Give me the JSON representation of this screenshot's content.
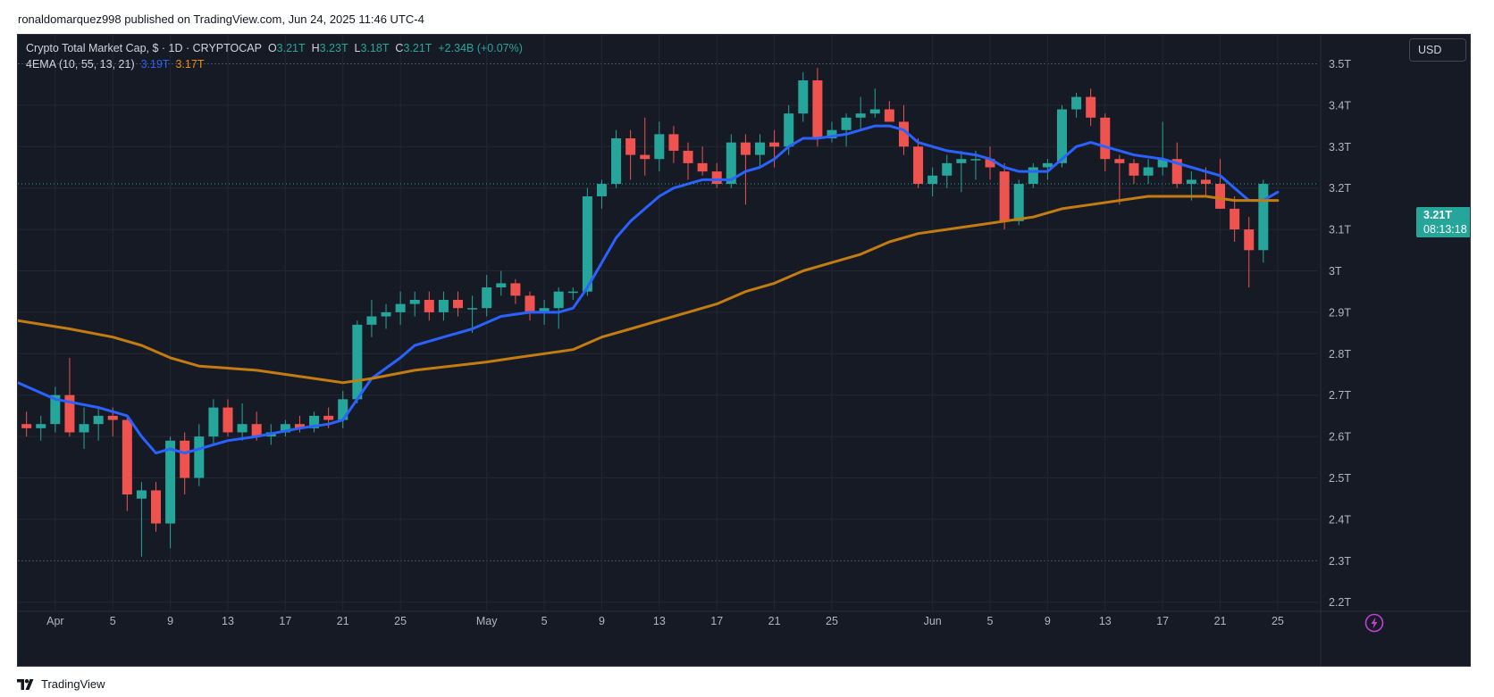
{
  "header": {
    "published": "ronaldomarquez998 published on TradingView.com, Jun 24, 2025 11:46 UTC-4"
  },
  "legend": {
    "symbol": "Crypto Total Market Cap, $ · 1D · CRYPTOCAP",
    "o_label": "O",
    "o_value": "3.21T",
    "h_label": "H",
    "h_value": "3.23T",
    "l_label": "L",
    "l_value": "3.18T",
    "c_label": "C",
    "c_value": "3.21T",
    "change": "+2.34B (+0.07%)",
    "indicator_name": "4EMA (10, 55, 13, 21)",
    "ema_fast_value": "3.19T",
    "ema_slow_value": "3.17T"
  },
  "toolbar": {
    "currency": "USD"
  },
  "price_tag": {
    "price": "3.21T",
    "countdown": "08:13:18"
  },
  "footer": {
    "brand": "TradingView"
  },
  "colors": {
    "background": "#161a25",
    "up": "#26a69a",
    "down": "#ef5350",
    "ema_fast": "#2962ff",
    "ema_slow": "#c27c12",
    "grid": "#232733",
    "text": "#b2b5be"
  },
  "icons": {
    "bolt": "lightning-icon",
    "logo": "tradingview-logo-icon"
  },
  "chart_data": {
    "type": "candlestick",
    "title": "Crypto Total Market Cap, $ · 1D · CRYPTOCAP",
    "currency": "USD",
    "ylim": [
      2.18,
      3.57
    ],
    "y_ticks": [
      2.2,
      2.3,
      2.4,
      2.5,
      2.6,
      2.7,
      2.8,
      2.9,
      3.0,
      3.1,
      3.2,
      3.3,
      3.4,
      3.5
    ],
    "y_tick_labels": [
      "2.2T",
      "2.3T",
      "2.4T",
      "2.5T",
      "2.6T",
      "2.7T",
      "2.8T",
      "2.9T",
      "3T",
      "3.1T",
      "3.2T",
      "3.3T",
      "3.4T",
      "3.5T"
    ],
    "x_ticks": [
      {
        "day": 0,
        "label": "Apr"
      },
      {
        "day": 4,
        "label": "5"
      },
      {
        "day": 8,
        "label": "9"
      },
      {
        "day": 12,
        "label": "13"
      },
      {
        "day": 16,
        "label": "17"
      },
      {
        "day": 20,
        "label": "21"
      },
      {
        "day": 24,
        "label": "25"
      },
      {
        "day": 30,
        "label": "May"
      },
      {
        "day": 34,
        "label": "5"
      },
      {
        "day": 38,
        "label": "9"
      },
      {
        "day": 42,
        "label": "13"
      },
      {
        "day": 46,
        "label": "17"
      },
      {
        "day": 50,
        "label": "21"
      },
      {
        "day": 54,
        "label": "25"
      },
      {
        "day": 61,
        "label": "Jun"
      },
      {
        "day": 65,
        "label": "5"
      },
      {
        "day": 69,
        "label": "9"
      },
      {
        "day": 73,
        "label": "13"
      },
      {
        "day": 77,
        "label": "17"
      },
      {
        "day": 81,
        "label": "21"
      },
      {
        "day": 85,
        "label": "25"
      }
    ],
    "first_day": -2.6,
    "last_day": 87.8,
    "candles": [
      {
        "day": -2,
        "o": 2.63,
        "h": 2.66,
        "l": 2.6,
        "c": 2.62
      },
      {
        "day": -1,
        "o": 2.62,
        "h": 2.65,
        "l": 2.59,
        "c": 2.63
      },
      {
        "day": 0,
        "o": 2.63,
        "h": 2.72,
        "l": 2.61,
        "c": 2.7
      },
      {
        "day": 1,
        "o": 2.7,
        "h": 2.79,
        "l": 2.6,
        "c": 2.61
      },
      {
        "day": 2,
        "o": 2.61,
        "h": 2.67,
        "l": 2.57,
        "c": 2.63
      },
      {
        "day": 3,
        "o": 2.63,
        "h": 2.67,
        "l": 2.59,
        "c": 2.65
      },
      {
        "day": 4,
        "o": 2.65,
        "h": 2.67,
        "l": 2.6,
        "c": 2.64
      },
      {
        "day": 5,
        "o": 2.64,
        "h": 2.65,
        "l": 2.42,
        "c": 2.46
      },
      {
        "day": 6,
        "o": 2.45,
        "h": 2.49,
        "l": 2.31,
        "c": 2.47
      },
      {
        "day": 7,
        "o": 2.47,
        "h": 2.49,
        "l": 2.37,
        "c": 2.39
      },
      {
        "day": 8,
        "o": 2.39,
        "h": 2.6,
        "l": 2.33,
        "c": 2.59
      },
      {
        "day": 9,
        "o": 2.59,
        "h": 2.61,
        "l": 2.46,
        "c": 2.5
      },
      {
        "day": 10,
        "o": 2.5,
        "h": 2.63,
        "l": 2.48,
        "c": 2.6
      },
      {
        "day": 11,
        "o": 2.6,
        "h": 2.69,
        "l": 2.58,
        "c": 2.67
      },
      {
        "day": 12,
        "o": 2.67,
        "h": 2.69,
        "l": 2.6,
        "c": 2.61
      },
      {
        "day": 13,
        "o": 2.61,
        "h": 2.68,
        "l": 2.59,
        "c": 2.63
      },
      {
        "day": 14,
        "o": 2.63,
        "h": 2.66,
        "l": 2.59,
        "c": 2.6
      },
      {
        "day": 15,
        "o": 2.6,
        "h": 2.63,
        "l": 2.58,
        "c": 2.61
      },
      {
        "day": 16,
        "o": 2.61,
        "h": 2.64,
        "l": 2.6,
        "c": 2.63
      },
      {
        "day": 17,
        "o": 2.63,
        "h": 2.65,
        "l": 2.61,
        "c": 2.62
      },
      {
        "day": 18,
        "o": 2.62,
        "h": 2.66,
        "l": 2.61,
        "c": 2.65
      },
      {
        "day": 19,
        "o": 2.65,
        "h": 2.67,
        "l": 2.62,
        "c": 2.64
      },
      {
        "day": 20,
        "o": 2.64,
        "h": 2.71,
        "l": 2.62,
        "c": 2.69
      },
      {
        "day": 21,
        "o": 2.69,
        "h": 2.88,
        "l": 2.68,
        "c": 2.87
      },
      {
        "day": 22,
        "o": 2.87,
        "h": 2.93,
        "l": 2.84,
        "c": 2.89
      },
      {
        "day": 23,
        "o": 2.89,
        "h": 2.92,
        "l": 2.86,
        "c": 2.9
      },
      {
        "day": 24,
        "o": 2.9,
        "h": 2.95,
        "l": 2.87,
        "c": 2.92
      },
      {
        "day": 25,
        "o": 2.92,
        "h": 2.95,
        "l": 2.89,
        "c": 2.93
      },
      {
        "day": 26,
        "o": 2.93,
        "h": 2.95,
        "l": 2.88,
        "c": 2.9
      },
      {
        "day": 27,
        "o": 2.9,
        "h": 2.95,
        "l": 2.88,
        "c": 2.93
      },
      {
        "day": 28,
        "o": 2.93,
        "h": 2.95,
        "l": 2.89,
        "c": 2.91
      },
      {
        "day": 29,
        "o": 2.91,
        "h": 2.94,
        "l": 2.85,
        "c": 2.91
      },
      {
        "day": 30,
        "o": 2.91,
        "h": 2.99,
        "l": 2.89,
        "c": 2.96
      },
      {
        "day": 31,
        "o": 2.96,
        "h": 3.0,
        "l": 2.94,
        "c": 2.97
      },
      {
        "day": 32,
        "o": 2.97,
        "h": 2.98,
        "l": 2.92,
        "c": 2.94
      },
      {
        "day": 33,
        "o": 2.94,
        "h": 2.95,
        "l": 2.88,
        "c": 2.9
      },
      {
        "day": 34,
        "o": 2.9,
        "h": 2.93,
        "l": 2.87,
        "c": 2.91
      },
      {
        "day": 35,
        "o": 2.91,
        "h": 2.96,
        "l": 2.86,
        "c": 2.95
      },
      {
        "day": 36,
        "o": 2.95,
        "h": 2.96,
        "l": 2.93,
        "c": 2.95
      },
      {
        "day": 37,
        "o": 2.95,
        "h": 3.2,
        "l": 2.94,
        "c": 3.18
      },
      {
        "day": 38,
        "o": 3.18,
        "h": 3.22,
        "l": 3.15,
        "c": 3.21
      },
      {
        "day": 39,
        "o": 3.21,
        "h": 3.34,
        "l": 3.2,
        "c": 3.32
      },
      {
        "day": 40,
        "o": 3.32,
        "h": 3.34,
        "l": 3.22,
        "c": 3.28
      },
      {
        "day": 41,
        "o": 3.28,
        "h": 3.37,
        "l": 3.23,
        "c": 3.27
      },
      {
        "day": 42,
        "o": 3.27,
        "h": 3.36,
        "l": 3.24,
        "c": 3.33
      },
      {
        "day": 43,
        "o": 3.33,
        "h": 3.35,
        "l": 3.26,
        "c": 3.29
      },
      {
        "day": 44,
        "o": 3.29,
        "h": 3.31,
        "l": 3.22,
        "c": 3.26
      },
      {
        "day": 45,
        "o": 3.26,
        "h": 3.3,
        "l": 3.23,
        "c": 3.24
      },
      {
        "day": 46,
        "o": 3.24,
        "h": 3.26,
        "l": 3.2,
        "c": 3.21
      },
      {
        "day": 47,
        "o": 3.21,
        "h": 3.33,
        "l": 3.2,
        "c": 3.31
      },
      {
        "day": 48,
        "o": 3.31,
        "h": 3.33,
        "l": 3.16,
        "c": 3.28
      },
      {
        "day": 49,
        "o": 3.28,
        "h": 3.33,
        "l": 3.25,
        "c": 3.31
      },
      {
        "day": 50,
        "o": 3.31,
        "h": 3.34,
        "l": 3.25,
        "c": 3.3
      },
      {
        "day": 51,
        "o": 3.3,
        "h": 3.4,
        "l": 3.28,
        "c": 3.38
      },
      {
        "day": 52,
        "o": 3.38,
        "h": 3.48,
        "l": 3.36,
        "c": 3.46
      },
      {
        "day": 53,
        "o": 3.46,
        "h": 3.49,
        "l": 3.3,
        "c": 3.32
      },
      {
        "day": 54,
        "o": 3.32,
        "h": 3.36,
        "l": 3.31,
        "c": 3.34
      },
      {
        "day": 55,
        "o": 3.34,
        "h": 3.38,
        "l": 3.3,
        "c": 3.37
      },
      {
        "day": 56,
        "o": 3.37,
        "h": 3.42,
        "l": 3.34,
        "c": 3.38
      },
      {
        "day": 57,
        "o": 3.38,
        "h": 3.44,
        "l": 3.37,
        "c": 3.39
      },
      {
        "day": 58,
        "o": 3.39,
        "h": 3.41,
        "l": 3.36,
        "c": 3.36
      },
      {
        "day": 59,
        "o": 3.36,
        "h": 3.4,
        "l": 3.28,
        "c": 3.3
      },
      {
        "day": 60,
        "o": 3.3,
        "h": 3.32,
        "l": 3.2,
        "c": 3.21
      },
      {
        "day": 61,
        "o": 3.21,
        "h": 3.25,
        "l": 3.18,
        "c": 3.23
      },
      {
        "day": 62,
        "o": 3.23,
        "h": 3.28,
        "l": 3.2,
        "c": 3.26
      },
      {
        "day": 63,
        "o": 3.26,
        "h": 3.29,
        "l": 3.19,
        "c": 3.27
      },
      {
        "day": 64,
        "o": 3.27,
        "h": 3.29,
        "l": 3.22,
        "c": 3.27
      },
      {
        "day": 65,
        "o": 3.27,
        "h": 3.3,
        "l": 3.22,
        "c": 3.25
      },
      {
        "day": 66,
        "o": 3.24,
        "h": 3.26,
        "l": 3.1,
        "c": 3.12
      },
      {
        "day": 67,
        "o": 3.12,
        "h": 3.22,
        "l": 3.11,
        "c": 3.21
      },
      {
        "day": 68,
        "o": 3.21,
        "h": 3.26,
        "l": 3.2,
        "c": 3.25
      },
      {
        "day": 69,
        "o": 3.25,
        "h": 3.27,
        "l": 3.22,
        "c": 3.26
      },
      {
        "day": 70,
        "o": 3.26,
        "h": 3.4,
        "l": 3.25,
        "c": 3.39
      },
      {
        "day": 71,
        "o": 3.39,
        "h": 3.43,
        "l": 3.37,
        "c": 3.42
      },
      {
        "day": 72,
        "o": 3.42,
        "h": 3.44,
        "l": 3.35,
        "c": 3.37
      },
      {
        "day": 73,
        "o": 3.37,
        "h": 3.38,
        "l": 3.24,
        "c": 3.27
      },
      {
        "day": 74,
        "o": 3.27,
        "h": 3.28,
        "l": 3.16,
        "c": 3.26
      },
      {
        "day": 75,
        "o": 3.26,
        "h": 3.27,
        "l": 3.21,
        "c": 3.23
      },
      {
        "day": 76,
        "o": 3.23,
        "h": 3.27,
        "l": 3.21,
        "c": 3.25
      },
      {
        "day": 77,
        "o": 3.25,
        "h": 3.36,
        "l": 3.23,
        "c": 3.27
      },
      {
        "day": 78,
        "o": 3.27,
        "h": 3.31,
        "l": 3.2,
        "c": 3.21
      },
      {
        "day": 79,
        "o": 3.21,
        "h": 3.24,
        "l": 3.17,
        "c": 3.22
      },
      {
        "day": 80,
        "o": 3.22,
        "h": 3.25,
        "l": 3.18,
        "c": 3.21
      },
      {
        "day": 81,
        "o": 3.21,
        "h": 3.27,
        "l": 3.15,
        "c": 3.15
      },
      {
        "day": 82,
        "o": 3.15,
        "h": 3.18,
        "l": 3.07,
        "c": 3.1
      },
      {
        "day": 83,
        "o": 3.1,
        "h": 3.13,
        "l": 2.96,
        "c": 3.05
      },
      {
        "day": 84,
        "o": 3.05,
        "h": 3.22,
        "l": 3.02,
        "c": 3.21
      }
    ],
    "series": [
      {
        "name": "EMA 10",
        "color": "#2962ff",
        "points": [
          [
            -2.6,
            2.73
          ],
          [
            0,
            2.69
          ],
          [
            3,
            2.67
          ],
          [
            5,
            2.65
          ],
          [
            6,
            2.6
          ],
          [
            7,
            2.56
          ],
          [
            8,
            2.57
          ],
          [
            9,
            2.56
          ],
          [
            10,
            2.57
          ],
          [
            12,
            2.59
          ],
          [
            14,
            2.6
          ],
          [
            17,
            2.62
          ],
          [
            19,
            2.63
          ],
          [
            20,
            2.64
          ],
          [
            21,
            2.69
          ],
          [
            22,
            2.74
          ],
          [
            24,
            2.79
          ],
          [
            25,
            2.82
          ],
          [
            27,
            2.84
          ],
          [
            29,
            2.86
          ],
          [
            31,
            2.89
          ],
          [
            33,
            2.9
          ],
          [
            35,
            2.9
          ],
          [
            36,
            2.91
          ],
          [
            37,
            2.96
          ],
          [
            38,
            3.02
          ],
          [
            39,
            3.08
          ],
          [
            40,
            3.12
          ],
          [
            41,
            3.15
          ],
          [
            42,
            3.18
          ],
          [
            43,
            3.2
          ],
          [
            44,
            3.21
          ],
          [
            45,
            3.22
          ],
          [
            47,
            3.22
          ],
          [
            48,
            3.24
          ],
          [
            49,
            3.25
          ],
          [
            50,
            3.27
          ],
          [
            51,
            3.3
          ],
          [
            52,
            3.32
          ],
          [
            53,
            3.32
          ],
          [
            55,
            3.33
          ],
          [
            57,
            3.35
          ],
          [
            58,
            3.35
          ],
          [
            59,
            3.34
          ],
          [
            60,
            3.31
          ],
          [
            61,
            3.3
          ],
          [
            62,
            3.29
          ],
          [
            64,
            3.28
          ],
          [
            65,
            3.27
          ],
          [
            66,
            3.25
          ],
          [
            67,
            3.24
          ],
          [
            69,
            3.24
          ],
          [
            70,
            3.27
          ],
          [
            71,
            3.3
          ],
          [
            72,
            3.31
          ],
          [
            73,
            3.3
          ],
          [
            75,
            3.28
          ],
          [
            77,
            3.27
          ],
          [
            79,
            3.25
          ],
          [
            81,
            3.23
          ],
          [
            82,
            3.2
          ],
          [
            83,
            3.17
          ],
          [
            84,
            3.17
          ],
          [
            85,
            3.19
          ]
        ]
      },
      {
        "name": "EMA 55",
        "color": "#c27c12",
        "points": [
          [
            -2.6,
            2.88
          ],
          [
            1,
            2.86
          ],
          [
            4,
            2.84
          ],
          [
            6,
            2.82
          ],
          [
            8,
            2.79
          ],
          [
            10,
            2.77
          ],
          [
            14,
            2.76
          ],
          [
            18,
            2.74
          ],
          [
            20,
            2.73
          ],
          [
            22,
            2.74
          ],
          [
            25,
            2.76
          ],
          [
            30,
            2.78
          ],
          [
            32,
            2.79
          ],
          [
            34,
            2.8
          ],
          [
            36,
            2.81
          ],
          [
            38,
            2.84
          ],
          [
            40,
            2.86
          ],
          [
            42,
            2.88
          ],
          [
            44,
            2.9
          ],
          [
            46,
            2.92
          ],
          [
            48,
            2.95
          ],
          [
            50,
            2.97
          ],
          [
            52,
            3.0
          ],
          [
            54,
            3.02
          ],
          [
            56,
            3.04
          ],
          [
            58,
            3.07
          ],
          [
            60,
            3.09
          ],
          [
            62,
            3.1
          ],
          [
            64,
            3.11
          ],
          [
            66,
            3.12
          ],
          [
            68,
            3.13
          ],
          [
            70,
            3.15
          ],
          [
            72,
            3.16
          ],
          [
            74,
            3.17
          ],
          [
            76,
            3.18
          ],
          [
            78,
            3.18
          ],
          [
            80,
            3.18
          ],
          [
            82,
            3.17
          ],
          [
            85,
            3.17
          ]
        ]
      }
    ],
    "last_price": 3.21
  }
}
